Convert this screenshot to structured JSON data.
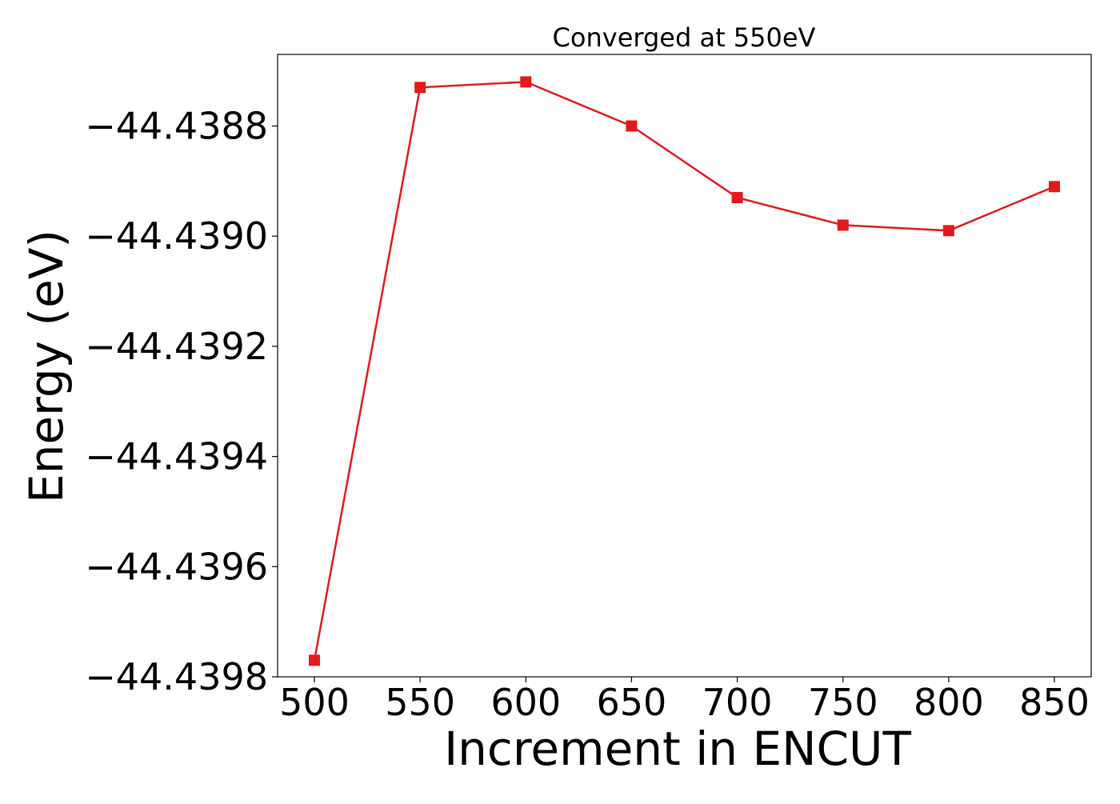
{
  "chart_data": {
    "type": "line",
    "title": "Converged at 550eV",
    "xlabel": "Increment in ENCUT",
    "ylabel": "Energy (eV)",
    "x": [
      500,
      550,
      600,
      650,
      700,
      750,
      800,
      850
    ],
    "series": [
      {
        "values": [
          -44.43977,
          -44.43873,
          -44.43872,
          -44.4388,
          -44.43893,
          -44.43898,
          -44.43899,
          -44.43891
        ],
        "color": "#e31a1c",
        "marker": "square"
      }
    ],
    "xticks": [
      500,
      550,
      600,
      650,
      700,
      750,
      800,
      850
    ],
    "xtick_labels": [
      "500",
      "550",
      "600",
      "650",
      "700",
      "750",
      "800",
      "850"
    ],
    "yticks": [
      -44.4388,
      -44.439,
      -44.4392,
      -44.4394,
      -44.4396,
      -44.4398
    ],
    "ytick_labels": [
      "−44.4388",
      "−44.4390",
      "−44.4392",
      "−44.4394",
      "−44.4396",
      "−44.4398"
    ],
    "xlim": [
      482.6,
      867.4
    ],
    "ylim": [
      -44.4398,
      -44.43867
    ],
    "grid": false,
    "legend": "none"
  }
}
